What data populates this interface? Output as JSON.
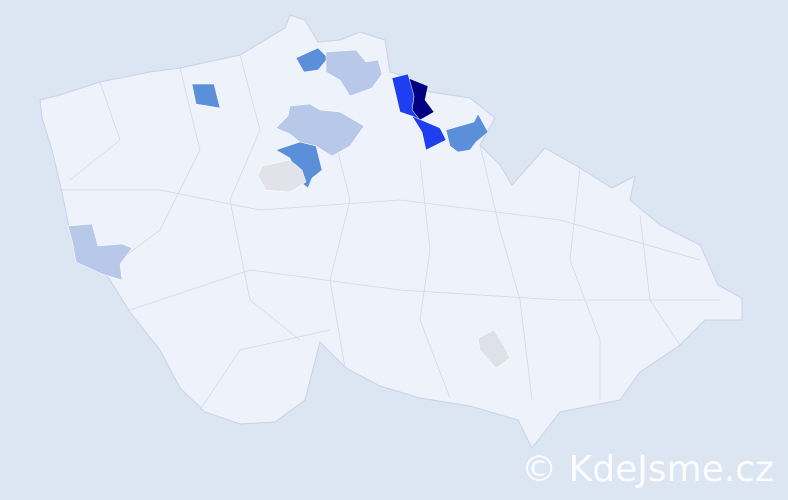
{
  "map": {
    "colors": {
      "background": "#dce5f2",
      "land": "#eef2fa",
      "border": "#c8d2ea",
      "level_highest": "#000080",
      "level_high": "#1f3ef0",
      "level_medium": "#5b8fd9",
      "level_low": "#b8c8e8",
      "level_neutral": "#dfe1ea"
    }
  },
  "watermark": "© KdeJsme.cz"
}
